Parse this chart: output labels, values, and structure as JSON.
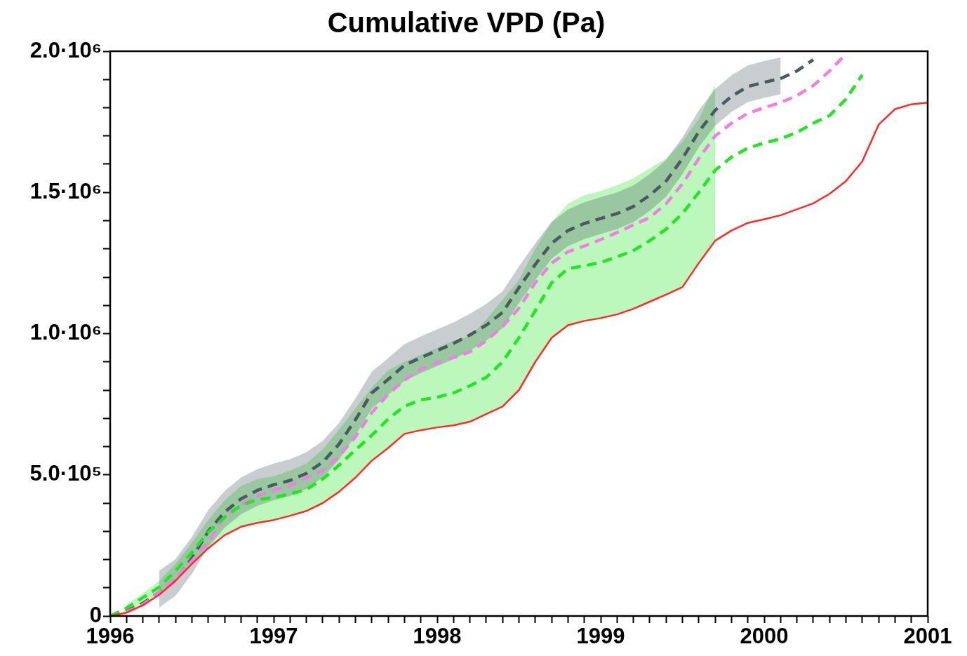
{
  "chart_data": {
    "type": "line",
    "title": "Cumulative VPD (Pa)",
    "legend": false,
    "marker": "none",
    "x": [
      1996,
      1996.1,
      1996.2,
      1996.3,
      1996.4,
      1996.5,
      1996.6,
      1996.7,
      1996.8,
      1996.9,
      1997,
      1997.1,
      1997.2,
      1997.3,
      1997.4,
      1997.5,
      1997.6,
      1997.7,
      1997.8,
      1997.9,
      1998,
      1998.1,
      1998.2,
      1998.3,
      1998.4,
      1998.5,
      1998.6,
      1998.7,
      1998.8,
      1998.9,
      1999,
      1999.1,
      1999.2,
      1999.3,
      1999.4,
      1999.5,
      1999.6,
      1999.7,
      1999.8,
      1999.9,
      2000,
      2000.1,
      2000.2,
      2000.3,
      2000.4,
      2000.5,
      2000.6,
      2000.7,
      2000.8,
      2000.9,
      2001
    ],
    "series": [
      {
        "color": "#ff2a2a",
        "line_style": "solid",
        "values": [
          0,
          12000,
          38000,
          75000,
          125000,
          185000,
          240000,
          286000,
          316000,
          330000,
          340000,
          355000,
          372000,
          400000,
          440000,
          490000,
          550000,
          595000,
          645000,
          658000,
          668000,
          675000,
          688000,
          715000,
          742000,
          800000,
          900000,
          985000,
          1030000,
          1045000,
          1055000,
          1068000,
          1088000,
          1113000,
          1138000,
          1165000,
          1250000,
          1329000,
          1365000,
          1392000,
          1405000,
          1419000,
          1440000,
          1461000,
          1495000,
          1540000,
          1610000,
          1740000,
          1795000,
          1812000,
          1818000
        ]
      },
      {
        "color": "#22e622",
        "line_style": "dashed",
        "values": [
          0,
          28000,
          65000,
          102000,
          160000,
          225000,
          296000,
          350000,
          392000,
          412000,
          420000,
          432000,
          448000,
          485000,
          534000,
          588000,
          640000,
          697000,
          743000,
          765000,
          775000,
          790000,
          815000,
          845000,
          900000,
          985000,
          1081000,
          1180000,
          1230000,
          1240000,
          1252000,
          1272000,
          1294000,
          1329000,
          1370000,
          1425000,
          1500000,
          1578000,
          1625000,
          1657000,
          1675000,
          1690000,
          1712000,
          1745000,
          1772000,
          1830000,
          1916000,
          null,
          null,
          null,
          null
        ],
        "lower": [
          null,
          12000,
          38000,
          75000,
          125000,
          185000,
          240000,
          286000,
          316000,
          330000,
          340000,
          355000,
          372000,
          400000,
          440000,
          490000,
          550000,
          595000,
          645000,
          658000,
          668000,
          675000,
          688000,
          715000,
          742000,
          800000,
          900000,
          985000,
          1030000,
          1045000,
          1055000,
          1068000,
          1088000,
          1113000,
          1138000,
          1165000,
          1250000,
          1329000,
          null,
          null,
          null,
          null,
          null,
          null,
          null,
          null,
          null,
          null,
          null,
          null,
          null
        ],
        "upper": [
          null,
          40000,
          80000,
          125000,
          185000,
          260000,
          340000,
          410000,
          460000,
          485000,
          495000,
          515000,
          540000,
          590000,
          660000,
          735000,
          810000,
          870000,
          900000,
          925000,
          950000,
          975000,
          990000,
          1050000,
          1120000,
          1190000,
          1300000,
          1395000,
          1460000,
          1490000,
          1505000,
          1525000,
          1550000,
          1585000,
          1620000,
          1680000,
          1760000,
          1880000,
          null,
          null,
          null,
          null,
          null,
          null,
          null,
          null,
          null,
          null,
          null,
          null,
          null
        ]
      },
      {
        "color": "#f07ee6",
        "line_style": "dashed",
        "values": [
          0,
          15000,
          40000,
          85000,
          135000,
          195000,
          265000,
          350000,
          395000,
          425000,
          445000,
          462000,
          490000,
          515000,
          565000,
          635000,
          720000,
          785000,
          835000,
          875000,
          897000,
          915000,
          935000,
          975000,
          1025000,
          1090000,
          1180000,
          1250000,
          1290000,
          1310000,
          1333000,
          1358000,
          1385000,
          1411000,
          1460000,
          1530000,
          1620000,
          1700000,
          1745000,
          1780000,
          1800000,
          1818000,
          1843000,
          1878000,
          1930000,
          1990000,
          null,
          null,
          null,
          null,
          null
        ]
      },
      {
        "color": "#4a5a60",
        "line_style": "dashed",
        "values": [
          0,
          18000,
          45000,
          85000,
          127000,
          205000,
          300000,
          368000,
          415000,
          445000,
          465000,
          480000,
          505000,
          545000,
          609000,
          695000,
          790000,
          838000,
          888000,
          915000,
          940000,
          965000,
          995000,
          1030000,
          1075000,
          1163000,
          1245000,
          1320000,
          1365000,
          1390000,
          1408000,
          1425000,
          1450000,
          1490000,
          1540000,
          1620000,
          1715000,
          1791000,
          1840000,
          1875000,
          1890000,
          1903000,
          1930000,
          1970000,
          null,
          null,
          null,
          null,
          null,
          null,
          null
        ],
        "lower": [
          null,
          null,
          null,
          30000,
          72000,
          150000,
          245000,
          313000,
          360000,
          390000,
          410000,
          425000,
          450000,
          490000,
          554000,
          640000,
          735000,
          783000,
          833000,
          860000,
          885000,
          910000,
          940000,
          975000,
          1020000,
          1108000,
          1190000,
          1265000,
          1310000,
          1335000,
          1353000,
          1370000,
          1395000,
          1435000,
          1485000,
          1565000,
          1660000,
          1736000,
          1785000,
          1820000,
          1835000,
          1848000,
          null,
          null,
          null,
          null,
          null,
          null,
          null,
          null,
          null
        ],
        "upper": [
          null,
          null,
          null,
          160000,
          202000,
          280000,
          375000,
          443000,
          490000,
          520000,
          540000,
          555000,
          580000,
          620000,
          684000,
          770000,
          865000,
          913000,
          963000,
          990000,
          1015000,
          1040000,
          1070000,
          1105000,
          1150000,
          1238000,
          1320000,
          1395000,
          1440000,
          1465000,
          1483000,
          1500000,
          1525000,
          1565000,
          1615000,
          1695000,
          1790000,
          1866000,
          1915000,
          1950000,
          1965000,
          1978000,
          null,
          null,
          null,
          null,
          null,
          null,
          null,
          null,
          null
        ]
      }
    ],
    "xlim": [
      1996,
      2001
    ],
    "ylim": [
      0,
      2000000
    ],
    "xticks": [
      1996,
      {
        "value": 1996.1,
        "label": null
      },
      {
        "value": 1996.2,
        "label": null
      },
      {
        "value": 1996.3,
        "label": null
      },
      {
        "value": 1996.4,
        "label": null
      },
      {
        "value": 1996.5,
        "label": null
      },
      {
        "value": 1996.6,
        "label": null
      },
      {
        "value": 1996.7,
        "label": null
      },
      {
        "value": 1996.8,
        "label": null
      },
      {
        "value": 1996.9,
        "label": null
      },
      1997,
      {
        "value": 1997.1,
        "label": null
      },
      {
        "value": 1997.2,
        "label": null
      },
      {
        "value": 1997.3,
        "label": null
      },
      {
        "value": 1997.4,
        "label": null
      },
      {
        "value": 1997.5,
        "label": null
      },
      {
        "value": 1997.6,
        "label": null
      },
      {
        "value": 1997.7,
        "label": null
      },
      {
        "value": 1997.8,
        "label": null
      },
      {
        "value": 1997.9,
        "label": null
      },
      1998,
      {
        "value": 1998.1,
        "label": null
      },
      {
        "value": 1998.2,
        "label": null
      },
      {
        "value": 1998.3,
        "label": null
      },
      {
        "value": 1998.4,
        "label": null
      },
      {
        "value": 1998.5,
        "label": null
      },
      {
        "value": 1998.6,
        "label": null
      },
      {
        "value": 1998.7,
        "label": null
      },
      {
        "value": 1998.8,
        "label": null
      },
      {
        "value": 1998.9,
        "label": null
      },
      1999,
      {
        "value": 1999.1,
        "label": null
      },
      {
        "value": 1999.2,
        "label": null
      },
      {
        "value": 1999.3,
        "label": null
      },
      {
        "value": 1999.4,
        "label": null
      },
      {
        "value": 1999.5,
        "label": null
      },
      {
        "value": 1999.6,
        "label": null
      },
      {
        "value": 1999.7,
        "label": null
      },
      {
        "value": 1999.8,
        "label": null
      },
      {
        "value": 1999.9,
        "label": null
      },
      2000,
      {
        "value": 2000.1,
        "label": null
      },
      {
        "value": 2000.2,
        "label": null
      },
      {
        "value": 2000.3,
        "label": null
      },
      {
        "value": 2000.4,
        "label": null
      },
      {
        "value": 2000.5,
        "label": null
      },
      {
        "value": 2000.6,
        "label": null
      },
      {
        "value": 2000.7,
        "label": null
      },
      {
        "value": 2000.8,
        "label": null
      },
      {
        "value": 2000.9,
        "label": null
      },
      2001
    ],
    "yticks": [
      0,
      {
        "value": 100000,
        "label": null
      },
      {
        "value": 200000,
        "label": null
      },
      {
        "value": 300000,
        "label": null
      },
      {
        "value": 400000,
        "label": null
      },
      {
        "value": 500000,
        "label": "5.0·10⁵"
      },
      {
        "value": 600000,
        "label": null
      },
      {
        "value": 700000,
        "label": null
      },
      {
        "value": 800000,
        "label": null
      },
      {
        "value": 900000,
        "label": null
      },
      {
        "value": 1000000,
        "label": "1.0·10⁶"
      },
      {
        "value": 1100000,
        "label": null
      },
      {
        "value": 1200000,
        "label": null
      },
      {
        "value": 1300000,
        "label": null
      },
      {
        "value": 1400000,
        "label": null
      },
      {
        "value": 1500000,
        "label": "1.5·10⁶"
      },
      {
        "value": 1600000,
        "label": null
      },
      {
        "value": 1700000,
        "label": null
      },
      {
        "value": 1800000,
        "label": null
      },
      {
        "value": 1900000,
        "label": null
      },
      {
        "value": 2000000,
        "label": "2.0·10⁶"
      }
    ]
  }
}
